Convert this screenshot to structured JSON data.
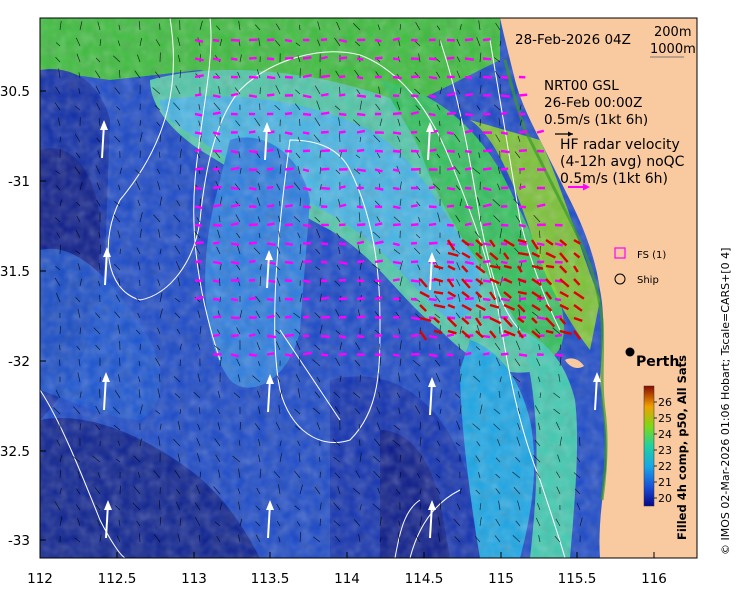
{
  "map": {
    "header_date": "28-Feb-2026 04Z",
    "depth_contours": [
      "200m",
      "1000m"
    ],
    "model_title": "NRT00 GSL",
    "model_date": "26-Feb 00:00Z",
    "model_scale": "0.5m/s (1kt 6h)",
    "radar_title": "HF radar velocity",
    "radar_subtitle": "(4-12h avg) noQC",
    "radar_scale": "0.5m/s (1kt 6h)",
    "legend_fs": "FS (1)",
    "legend_ship": "Ship",
    "city_label": "Perth",
    "colorbar_label": "Filled 4h comp, p50, All Sats",
    "colorbar_ticks": [
      "26",
      "25",
      "24",
      "23",
      "22",
      "21",
      "20"
    ],
    "credit": "© IMOS 02-Mar-2026 01:06 Hobart; Tscale=CARS+[0 4]",
    "x_ticks": [
      "112",
      "112.5",
      "113",
      "113.5",
      "114",
      "114.5",
      "115",
      "115.5",
      "116"
    ],
    "y_ticks": [
      "-30.5",
      "-31",
      "-31.5",
      "-32",
      "-32.5",
      "-33"
    ],
    "colors": {
      "land": "#f9c9a0",
      "model_arrows": "#ff00ff",
      "radar_arrows": "#e00000",
      "vectors": "#000000",
      "contours": "#ffffff"
    }
  }
}
